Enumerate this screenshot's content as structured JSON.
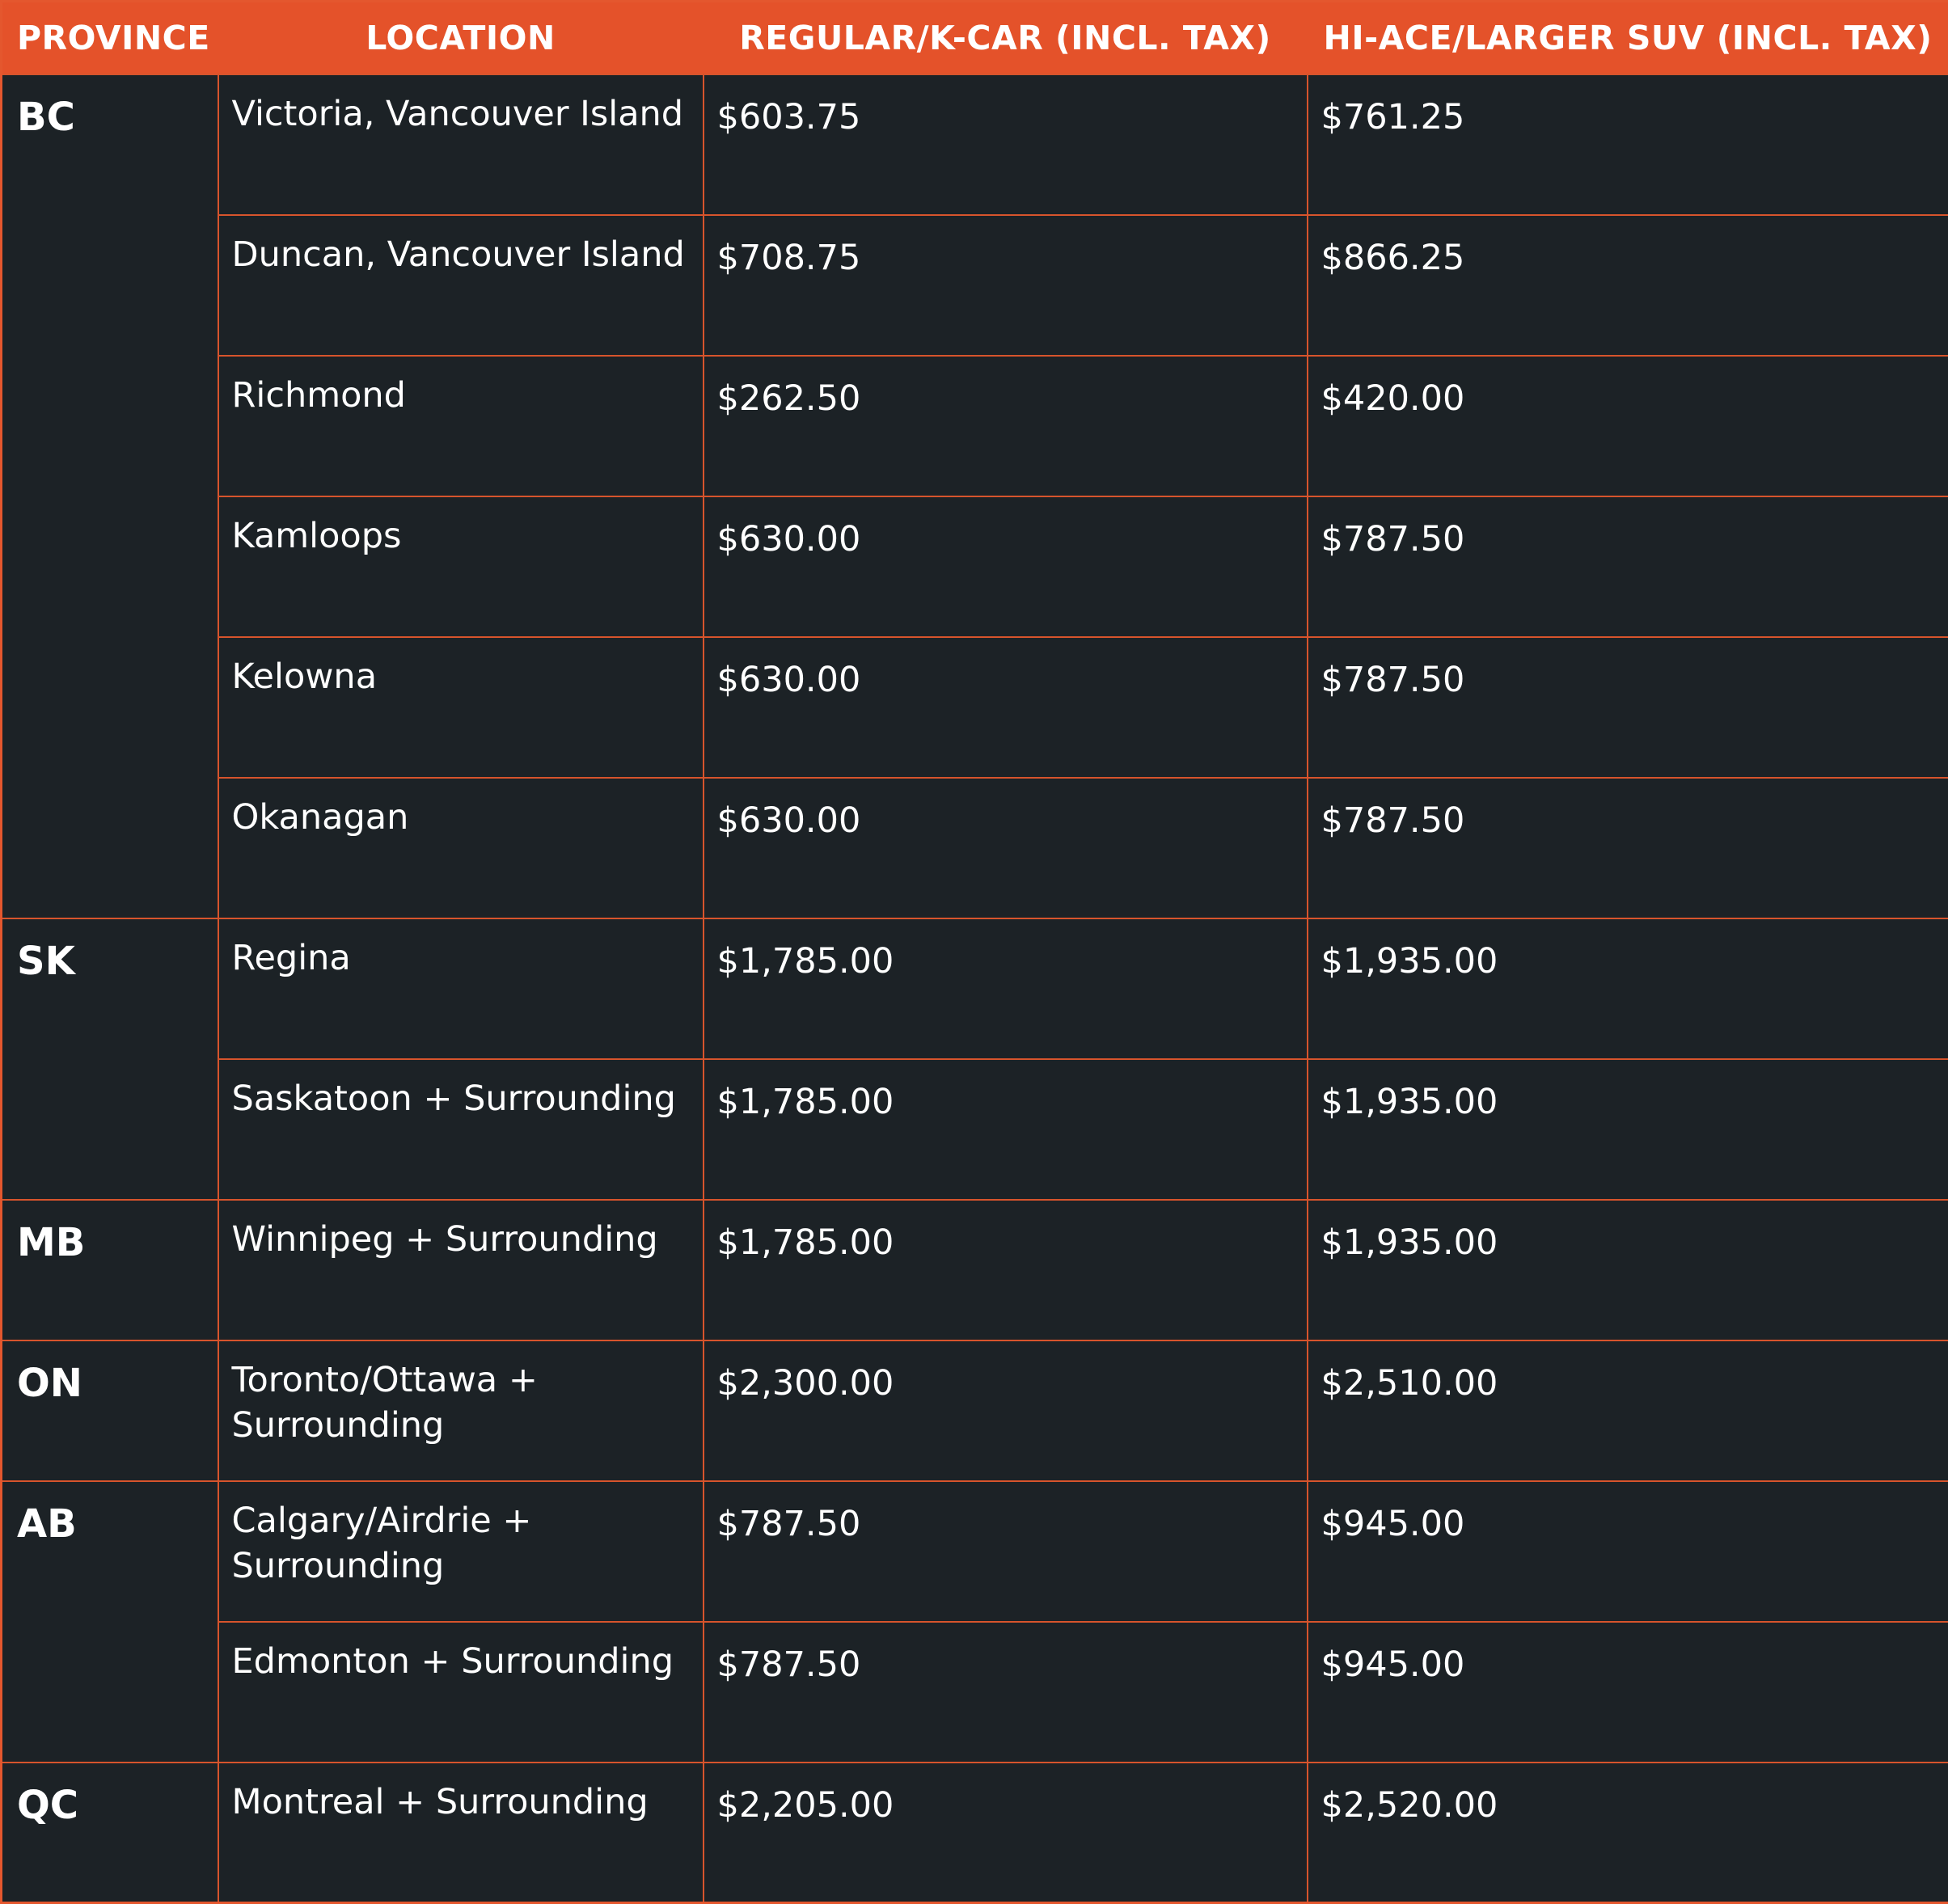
{
  "colors": {
    "header_bg": "#e4522a",
    "body_bg": "#1c2226",
    "grid_line": "#d7542c",
    "text": "#ffffff"
  },
  "headers": {
    "province": "PROVINCE",
    "location": "LOCATION",
    "regular": "REGULAR/K-CAR (INCL. TAX)",
    "hiace": "HI-ACE/LARGER SUV (INCL. TAX)"
  },
  "groups": [
    {
      "province": "BC",
      "rows": [
        {
          "location": "Victoria, Vancouver Island",
          "regular": "$603.75",
          "hiace": "$761.25"
        },
        {
          "location": "Duncan, Vancouver Island",
          "regular": "$708.75",
          "hiace": "$866.25"
        },
        {
          "location": "Richmond",
          "regular": "$262.50",
          "hiace": "$420.00"
        },
        {
          "location": "Kamloops",
          "regular": "$630.00",
          "hiace": "$787.50"
        },
        {
          "location": "Kelowna",
          "regular": "$630.00",
          "hiace": "$787.50"
        },
        {
          "location": "Okanagan",
          "regular": "$630.00",
          "hiace": "$787.50"
        }
      ]
    },
    {
      "province": "SK",
      "rows": [
        {
          "location": "Regina",
          "regular": "$1,785.00",
          "hiace": "$1,935.00"
        },
        {
          "location": "Saskatoon + Surrounding",
          "regular": "$1,785.00",
          "hiace": "$1,935.00"
        }
      ]
    },
    {
      "province": "MB",
      "rows": [
        {
          "location": "Winnipeg + Surrounding",
          "regular": "$1,785.00",
          "hiace": "$1,935.00"
        }
      ]
    },
    {
      "province": "ON",
      "rows": [
        {
          "location": "Toronto/Ottawa + Surrounding",
          "regular": "$2,300.00",
          "hiace": "$2,510.00"
        }
      ]
    },
    {
      "province": "AB",
      "rows": [
        {
          "location": "Calgary/Airdrie + Surrounding",
          "regular": "$787.50",
          "hiace": "$945.00"
        },
        {
          "location": "Edmonton + Surrounding",
          "regular": "$787.50",
          "hiace": "$945.00"
        }
      ]
    },
    {
      "province": "QC",
      "rows": [
        {
          "location": "Montreal + Surrounding",
          "regular": "$2,205.00",
          "hiace": "$2,520.00"
        }
      ]
    }
  ]
}
